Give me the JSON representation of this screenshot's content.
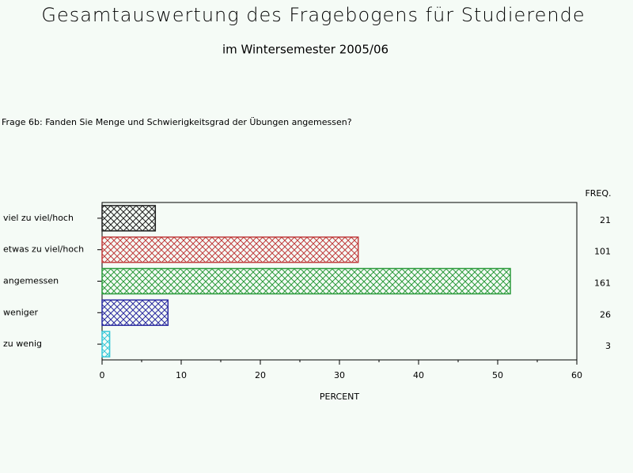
{
  "chart_data": {
    "type": "hbar",
    "title": "Gesamtauswertung des Fragebogens für Studierende",
    "subtitle": "im Wintersemester 2005/06",
    "question": "Frage 6b: Fanden Sie Menge und Schwierigkeitsgrad der Übungen angemessen?",
    "categories": [
      "viel zu viel/hoch",
      "etwas zu viel/hoch",
      "angemessen",
      "weniger",
      "zu wenig"
    ],
    "values": [
      6.73,
      32.37,
      51.6,
      8.33,
      0.96
    ],
    "colors": [
      "#202020",
      "#c03c3c",
      "#2a9a3a",
      "#2a2aa0",
      "#38c8d8"
    ],
    "freq_label": "FREQ.",
    "freq": [
      21,
      101,
      161,
      26,
      3
    ],
    "xlabel": "PERCENT",
    "xlim": [
      0,
      60
    ],
    "xticks": [
      0,
      10,
      20,
      30,
      40,
      50,
      60
    ],
    "minor_ticks": [
      5,
      15,
      25,
      35,
      45,
      55
    ]
  }
}
